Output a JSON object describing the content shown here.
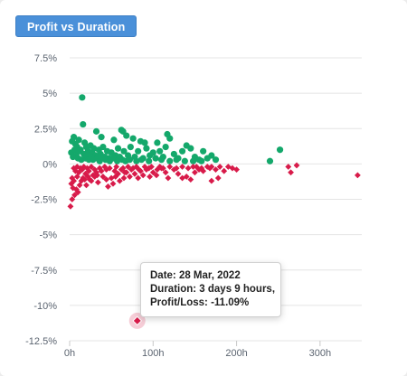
{
  "header": {
    "tab_label": "Profit vs Duration"
  },
  "colors": {
    "profit": "#14a86b",
    "loss": "#d81b4a",
    "grid": "#e4e4e4",
    "axis_text": "#5b6470"
  },
  "tooltip": {
    "date": "Date: 28 Mar, 2022",
    "duration": "Duration: 3 days 9 hours,",
    "profit": "Profit/Loss: -11.09%"
  },
  "chart_data": {
    "type": "scatter",
    "title": "Profit vs Duration",
    "xlabel": "",
    "ylabel": "",
    "xlim": [
      0,
      350
    ],
    "ylim": [
      -12.5,
      7.5
    ],
    "x_ticks": [
      0,
      100,
      200,
      300
    ],
    "x_tick_labels": [
      "0h",
      "100h",
      "200h",
      "300h"
    ],
    "y_ticks": [
      7.5,
      5,
      2.5,
      0,
      -2.5,
      -5,
      -7.5,
      -10,
      -12.5
    ],
    "y_tick_labels": [
      "7.5%",
      "5%",
      "2.5%",
      "0%",
      "-2.5%",
      "-5%",
      "-7.5%",
      "-10%",
      "-12.5%"
    ],
    "grid": true,
    "highlighted_point": {
      "x": 81,
      "y": -11.09
    },
    "series": [
      {
        "name": "Profit",
        "marker": "circle",
        "points": [
          [
            15,
            4.7
          ],
          [
            16,
            2.8
          ],
          [
            32,
            2.3
          ],
          [
            62,
            2.4
          ],
          [
            64,
            2.3
          ],
          [
            38,
            1.9
          ],
          [
            53,
            1.7
          ],
          [
            68,
            2.0
          ],
          [
            76,
            1.8
          ],
          [
            85,
            1.6
          ],
          [
            90,
            1.5
          ],
          [
            117,
            2.1
          ],
          [
            120,
            1.8
          ],
          [
            105,
            1.5
          ],
          [
            140,
            1.3
          ],
          [
            145,
            1.1
          ],
          [
            160,
            0.9
          ],
          [
            170,
            0.6
          ],
          [
            175,
            0.3
          ],
          [
            240,
            0.2
          ],
          [
            252,
            1.0
          ],
          [
            3,
            1.6
          ],
          [
            5,
            1.9
          ],
          [
            7,
            1.4
          ],
          [
            9,
            1.2
          ],
          [
            11,
            1.7
          ],
          [
            13,
            1.0
          ],
          [
            18,
            1.5
          ],
          [
            20,
            1.2
          ],
          [
            22,
            0.9
          ],
          [
            25,
            1.3
          ],
          [
            27,
            0.8
          ],
          [
            29,
            1.1
          ],
          [
            31,
            0.6
          ],
          [
            35,
            1.0
          ],
          [
            37,
            0.7
          ],
          [
            40,
            1.2
          ],
          [
            42,
            0.5
          ],
          [
            45,
            0.9
          ],
          [
            47,
            0.4
          ],
          [
            50,
            0.8
          ],
          [
            55,
            0.6
          ],
          [
            58,
            1.1
          ],
          [
            60,
            0.5
          ],
          [
            65,
            0.9
          ],
          [
            70,
            0.6
          ],
          [
            73,
            1.2
          ],
          [
            78,
            0.5
          ],
          [
            82,
            0.9
          ],
          [
            88,
            0.4
          ],
          [
            92,
            1.1
          ],
          [
            96,
            0.6
          ],
          [
            100,
            0.8
          ],
          [
            103,
            0.4
          ],
          [
            108,
            0.9
          ],
          [
            112,
            0.5
          ],
          [
            115,
            1.2
          ],
          [
            125,
            0.7
          ],
          [
            130,
            0.4
          ],
          [
            135,
            0.9
          ],
          [
            150,
            0.5
          ],
          [
            155,
            0.3
          ],
          [
            165,
            0.4
          ],
          [
            2,
            0.8
          ],
          [
            4,
            0.5
          ],
          [
            6,
            1.0
          ],
          [
            8,
            0.6
          ],
          [
            10,
            0.4
          ],
          [
            12,
            0.9
          ],
          [
            14,
            0.3
          ],
          [
            17,
            0.7
          ],
          [
            19,
            0.4
          ],
          [
            21,
            0.6
          ],
          [
            23,
            0.3
          ],
          [
            26,
            0.5
          ],
          [
            28,
            0.3
          ],
          [
            33,
            0.4
          ],
          [
            36,
            0.2
          ],
          [
            39,
            0.5
          ],
          [
            43,
            0.3
          ],
          [
            48,
            0.2
          ],
          [
            52,
            0.4
          ],
          [
            57,
            0.2
          ],
          [
            63,
            0.3
          ],
          [
            67,
            0.2
          ],
          [
            72,
            0.3
          ],
          [
            80,
            0.2
          ],
          [
            86,
            0.3
          ],
          [
            95,
            0.2
          ],
          [
            110,
            0.3
          ],
          [
            120,
            0.2
          ],
          [
            128,
            0.3
          ],
          [
            138,
            0.2
          ],
          [
            148,
            0.2
          ],
          [
            158,
            0.2
          ]
        ]
      },
      {
        "name": "Loss",
        "marker": "diamond",
        "points": [
          [
            81,
            -11.09
          ],
          [
            1,
            -3.0
          ],
          [
            3,
            -2.5
          ],
          [
            6,
            -2.2
          ],
          [
            8,
            -1.8
          ],
          [
            10,
            -2.0
          ],
          [
            12,
            -1.5
          ],
          [
            14,
            -1.2
          ],
          [
            4,
            -1.7
          ],
          [
            2,
            -1.4
          ],
          [
            20,
            -1.5
          ],
          [
            24,
            -1.1
          ],
          [
            28,
            -0.8
          ],
          [
            34,
            -1.3
          ],
          [
            40,
            -0.9
          ],
          [
            46,
            -1.6
          ],
          [
            50,
            -1.0
          ],
          [
            52,
            -1.4
          ],
          [
            58,
            -0.7
          ],
          [
            60,
            -1.2
          ],
          [
            68,
            -0.6
          ],
          [
            72,
            -0.9
          ],
          [
            78,
            -0.7
          ],
          [
            85,
            -0.5
          ],
          [
            88,
            -0.8
          ],
          [
            92,
            -0.4
          ],
          [
            100,
            -0.6
          ],
          [
            110,
            -0.3
          ],
          [
            115,
            -0.6
          ],
          [
            118,
            -1.0
          ],
          [
            125,
            -0.4
          ],
          [
            130,
            -0.7
          ],
          [
            140,
            -0.9
          ],
          [
            145,
            -1.1
          ],
          [
            150,
            -0.6
          ],
          [
            155,
            -0.4
          ],
          [
            160,
            -0.5
          ],
          [
            168,
            -0.3
          ],
          [
            175,
            -0.4
          ],
          [
            185,
            -0.5
          ],
          [
            200,
            -0.4
          ],
          [
            265,
            -0.6
          ],
          [
            272,
            -0.1
          ],
          [
            262,
            -0.2
          ],
          [
            345,
            -0.8
          ],
          [
            5,
            -0.3
          ],
          [
            7,
            -0.5
          ],
          [
            9,
            -0.2
          ],
          [
            11,
            -0.6
          ],
          [
            13,
            -0.3
          ],
          [
            15,
            -0.4
          ],
          [
            17,
            -0.2
          ],
          [
            19,
            -0.7
          ],
          [
            21,
            -0.3
          ],
          [
            23,
            -0.5
          ],
          [
            26,
            -0.2
          ],
          [
            30,
            -0.4
          ],
          [
            32,
            -0.6
          ],
          [
            36,
            -0.3
          ],
          [
            38,
            -0.5
          ],
          [
            42,
            -0.2
          ],
          [
            44,
            -0.4
          ],
          [
            48,
            -0.3
          ],
          [
            54,
            -0.5
          ],
          [
            56,
            -0.2
          ],
          [
            62,
            -0.4
          ],
          [
            64,
            -0.3
          ],
          [
            66,
            -0.6
          ],
          [
            70,
            -0.2
          ],
          [
            74,
            -0.4
          ],
          [
            76,
            -0.3
          ],
          [
            80,
            -0.2
          ],
          [
            83,
            -0.4
          ],
          [
            90,
            -0.2
          ],
          [
            95,
            -0.3
          ],
          [
            98,
            -0.2
          ],
          [
            105,
            -0.4
          ],
          [
            108,
            -0.2
          ],
          [
            112,
            -0.3
          ],
          [
            120,
            -0.2
          ],
          [
            128,
            -0.3
          ],
          [
            135,
            -0.2
          ],
          [
            142,
            -0.3
          ],
          [
            148,
            -0.2
          ],
          [
            152,
            -0.2
          ],
          [
            158,
            -0.3
          ],
          [
            165,
            -0.2
          ],
          [
            170,
            -0.2
          ],
          [
            180,
            -0.2
          ],
          [
            190,
            -0.2
          ],
          [
            195,
            -0.3
          ],
          [
            3,
            -1.0
          ],
          [
            5,
            -1.2
          ],
          [
            9,
            -0.9
          ],
          [
            16,
            -1.0
          ],
          [
            18,
            -1.1
          ],
          [
            22,
            -0.9
          ],
          [
            26,
            -1.2
          ],
          [
            30,
            -0.9
          ],
          [
            33,
            -0.8
          ],
          [
            44,
            -1.1
          ],
          [
            55,
            -0.9
          ],
          [
            65,
            -1.0
          ],
          [
            82,
            -1.0
          ],
          [
            96,
            -0.9
          ],
          [
            104,
            -0.8
          ],
          [
            135,
            -1.0
          ],
          [
            170,
            -1.2
          ],
          [
            178,
            -1.0
          ]
        ]
      }
    ]
  }
}
